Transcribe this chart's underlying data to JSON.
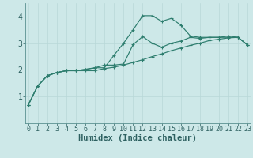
{
  "xlabel": "Humidex (Indice chaleur)",
  "bg_color": "#cde8e8",
  "line_color": "#2d7d6e",
  "x": [
    0,
    1,
    2,
    3,
    4,
    5,
    6,
    7,
    8,
    9,
    10,
    11,
    12,
    13,
    14,
    15,
    16,
    17,
    18,
    19,
    20,
    21,
    22,
    23
  ],
  "curve1": [
    0.68,
    1.4,
    1.78,
    1.9,
    1.97,
    1.97,
    1.97,
    1.97,
    2.05,
    2.1,
    2.18,
    2.28,
    2.38,
    2.5,
    2.6,
    2.72,
    2.82,
    2.92,
    3.0,
    3.1,
    3.15,
    3.2,
    3.22,
    2.93
  ],
  "curve2": [
    0.68,
    1.4,
    1.78,
    1.9,
    1.97,
    1.97,
    2.02,
    2.08,
    2.08,
    2.55,
    3.0,
    3.5,
    4.03,
    4.03,
    3.82,
    3.93,
    3.68,
    3.27,
    3.22,
    3.22,
    3.22,
    3.22,
    3.22,
    2.93
  ],
  "curve3": [
    0.68,
    1.4,
    1.78,
    1.9,
    1.97,
    1.97,
    2.02,
    2.08,
    2.18,
    2.18,
    2.22,
    2.95,
    3.25,
    3.0,
    2.85,
    3.0,
    3.08,
    3.22,
    3.18,
    3.22,
    3.22,
    3.27,
    3.22,
    2.93
  ],
  "ylim": [
    0,
    4.5
  ],
  "yticks": [
    1,
    2,
    3,
    4
  ],
  "grid_color": "#b8d8d8",
  "tick_color": "#2d6060",
  "xlabel_fontsize": 7.5,
  "xtick_fontsize": 6.0,
  "ytick_fontsize": 7.0
}
